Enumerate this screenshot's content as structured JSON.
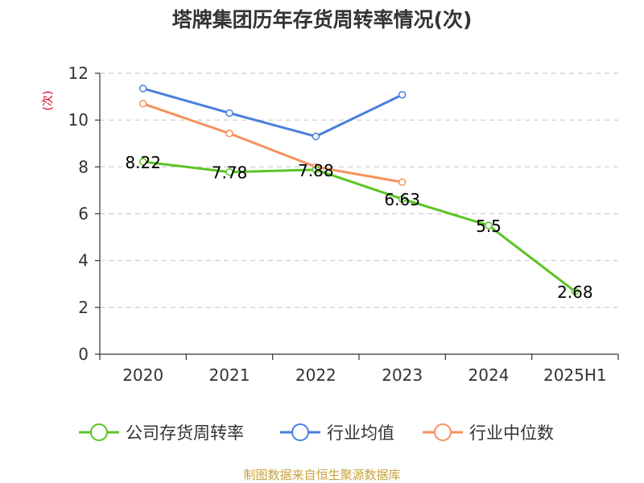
{
  "chart_data": {
    "type": "line",
    "title": "塔牌集团历年存货周转率情况(次)",
    "ylabel": "(次)",
    "xlabel": "",
    "categories": [
      "2020",
      "2021",
      "2022",
      "2023",
      "2024",
      "2025H1"
    ],
    "y_ticks": [
      "0",
      "2",
      "4",
      "6",
      "8",
      "10",
      "12"
    ],
    "ylim": [
      0,
      12
    ],
    "grid": true,
    "legend_position": "bottom",
    "series": [
      {
        "name": "公司存货周转率",
        "values": [
          8.22,
          7.78,
          7.88,
          6.63,
          5.5,
          2.68
        ],
        "labels": [
          "8.22",
          "7.78",
          "7.88",
          "6.63",
          "5.5",
          "2.68"
        ],
        "color": "#5bc425"
      },
      {
        "name": "行业均值",
        "values": [
          11.35,
          10.3,
          9.3,
          11.08,
          null,
          null
        ],
        "color": "#4a7fdc"
      },
      {
        "name": "行业中位数",
        "values": [
          10.7,
          9.43,
          8.0,
          7.35,
          null,
          null
        ],
        "color": "#f5915d"
      }
    ]
  },
  "colors": {
    "title": "#333333",
    "ylabel": "#d0021b",
    "source": "#c8a23c",
    "axis": "#333333",
    "grid": "#cccccc"
  },
  "footer": {
    "source": "制图数据来自恒生聚源数据库"
  }
}
